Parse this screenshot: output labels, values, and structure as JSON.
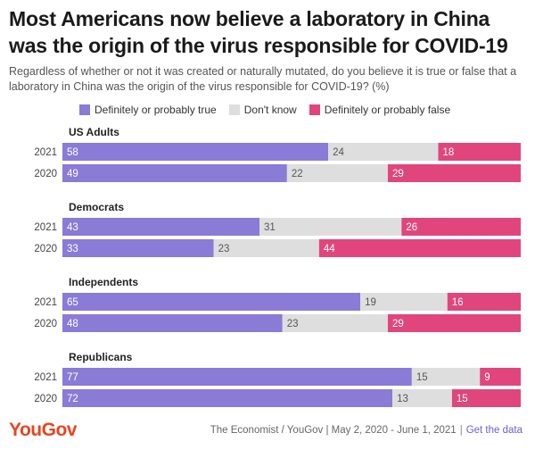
{
  "title": "Most Americans now believe a laboratory in China was the origin of the virus responsible for COVID-19",
  "subtitle": "Regardless of whether or not it was created or naturally mutated, do you believe it is true or false that a laboratory in China was the origin of the virus responsible for COVID-19? (%)",
  "legend": [
    {
      "label": "Definitely or probably true",
      "color": "#8a7bd6"
    },
    {
      "label": "Don't know",
      "color": "#dedede"
    },
    {
      "label": "Definitely or probably false",
      "color": "#e0467c"
    }
  ],
  "chart_data": {
    "type": "bar",
    "orientation": "horizontal",
    "stacked": true,
    "xlim": [
      0,
      100
    ],
    "groups": [
      {
        "name": "US Adults",
        "rows": [
          {
            "year": "2021",
            "values": [
              58,
              24,
              18
            ]
          },
          {
            "year": "2020",
            "values": [
              49,
              22,
              29
            ]
          }
        ]
      },
      {
        "name": "Democrats",
        "rows": [
          {
            "year": "2021",
            "values": [
              43,
              31,
              26
            ]
          },
          {
            "year": "2020",
            "values": [
              33,
              23,
              44
            ]
          }
        ]
      },
      {
        "name": "Independents",
        "rows": [
          {
            "year": "2021",
            "values": [
              65,
              19,
              16
            ]
          },
          {
            "year": "2020",
            "values": [
              48,
              23,
              29
            ]
          }
        ]
      },
      {
        "name": "Republicans",
        "rows": [
          {
            "year": "2021",
            "values": [
              77,
              15,
              9
            ]
          },
          {
            "year": "2020",
            "values": [
              72,
              13,
              15
            ]
          }
        ]
      }
    ],
    "series": [
      {
        "name": "Definitely or probably true",
        "color": "#8a7bd6"
      },
      {
        "name": "Don't know",
        "color": "#dedede"
      },
      {
        "name": "Definitely or probably false",
        "color": "#e0467c"
      }
    ]
  },
  "footer": {
    "logo": "YouGov",
    "source": "The Economist / YouGov | May 2, 2020 - June 1, 2021",
    "separator": "|",
    "link": "Get the data"
  }
}
